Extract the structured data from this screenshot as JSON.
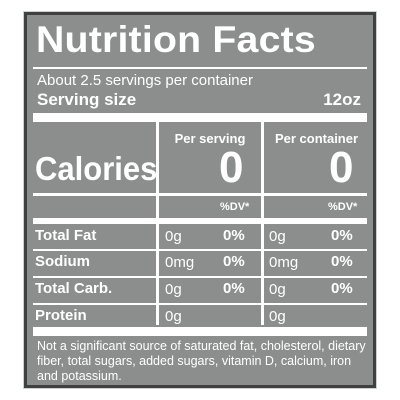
{
  "title": "Nutrition Facts",
  "servings_per_container": "About 2.5 servings per container",
  "serving_size": {
    "label": "Serving size",
    "value": "12oz"
  },
  "columns": {
    "per_serving": "Per serving",
    "per_container": "Per container"
  },
  "calories": {
    "label": "Calories",
    "per_serving": "0",
    "per_container": "0"
  },
  "dv_header": "%DV*",
  "nutrients": [
    {
      "name": "Total Fat",
      "serving_amount": "0g",
      "serving_dv": "0%",
      "container_amount": "0g",
      "container_dv": "0%"
    },
    {
      "name": "Sodium",
      "serving_amount": "0mg",
      "serving_dv": "0%",
      "container_amount": "0mg",
      "container_dv": "0%"
    },
    {
      "name": "Total Carb.",
      "serving_amount": "0g",
      "serving_dv": "0%",
      "container_amount": "0g",
      "container_dv": "0%"
    },
    {
      "name": "Protein",
      "serving_amount": "0g",
      "serving_dv": "",
      "container_amount": "0g",
      "container_dv": ""
    }
  ],
  "footnote": "Not a significant source of saturated fat, cholesterol, dietary fiber, total sugars, added sugars, vitamin D, calcium, iron and potassium."
}
